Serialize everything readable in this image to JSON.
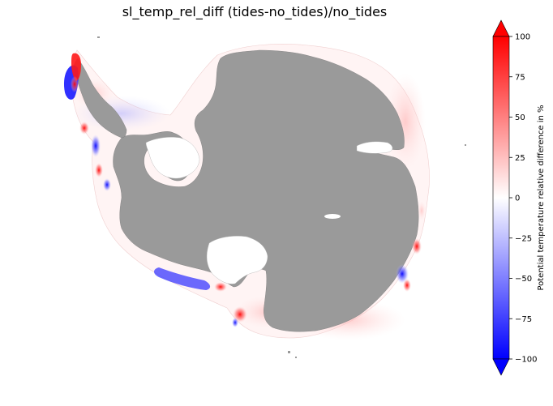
{
  "title": "sl_temp_rel_diff (tides-no_tides)/no_tides",
  "colorbar": {
    "label": "Potential temperature relative difference in %",
    "min": -100,
    "max": 100,
    "extend": "both",
    "colormap": "bwr",
    "ticks": [
      {
        "value": 100,
        "label": "100"
      },
      {
        "value": 75,
        "label": "75"
      },
      {
        "value": 50,
        "label": "50"
      },
      {
        "value": 25,
        "label": "25"
      },
      {
        "value": 0,
        "label": "0"
      },
      {
        "value": -25,
        "label": "−25"
      },
      {
        "value": -50,
        "label": "−50"
      },
      {
        "value": -75,
        "label": "−75"
      },
      {
        "value": -100,
        "label": "−100"
      }
    ]
  },
  "colors": {
    "land": "#9a9a9a",
    "high": "#ff0000",
    "mid": "#ffffff",
    "low": "#0000ff"
  },
  "chart_data": {
    "type": "heatmap",
    "title": "sl_temp_rel_diff (tides-no_tides)/no_tides",
    "projection": "south-polar-stereographic",
    "colorbar_label": "Potential temperature relative difference in %",
    "vmin": -100,
    "vmax": 100,
    "extend": "both",
    "grid": false,
    "legend_position": "right"
  }
}
